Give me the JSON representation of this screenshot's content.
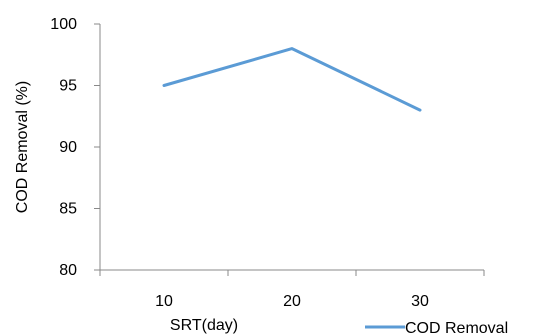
{
  "chart_data": {
    "type": "line",
    "categories": [
      "10",
      "20",
      "30"
    ],
    "series": [
      {
        "name": "COD Removal",
        "values": [
          95,
          98,
          93
        ],
        "color": "#5B9BD5"
      }
    ],
    "xlabel": "SRT(day)",
    "ylabel": "COD Removal (%)",
    "ylim": [
      80,
      100
    ],
    "yticks": [
      "80",
      "85",
      "90",
      "95",
      "100"
    ],
    "grid": false,
    "legend_position": "bottom-right"
  }
}
